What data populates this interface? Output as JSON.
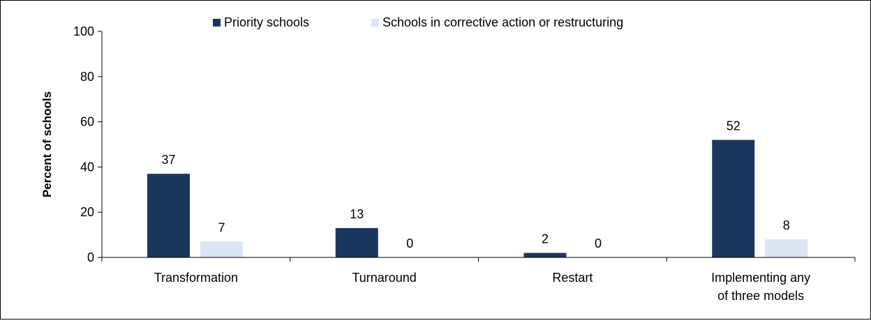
{
  "chart_data": {
    "type": "bar",
    "categories": [
      [
        "Transformation"
      ],
      [
        "Turnaround"
      ],
      [
        "Restart"
      ],
      [
        "Implementing any",
        "of three models"
      ]
    ],
    "series": [
      {
        "name": "Priority schools",
        "values": [
          37,
          13,
          2,
          52
        ],
        "color": "#1b365d"
      },
      {
        "name": "Schools in corrective action or restructuring",
        "values": [
          7,
          0,
          0,
          8
        ],
        "color": "#dce6f2"
      }
    ],
    "ylabel": "Percent of schools",
    "xlabel": "",
    "ylim": [
      0,
      100
    ],
    "yticks": [
      0,
      20,
      40,
      60,
      80,
      100
    ],
    "grid": false,
    "legend": "top"
  }
}
